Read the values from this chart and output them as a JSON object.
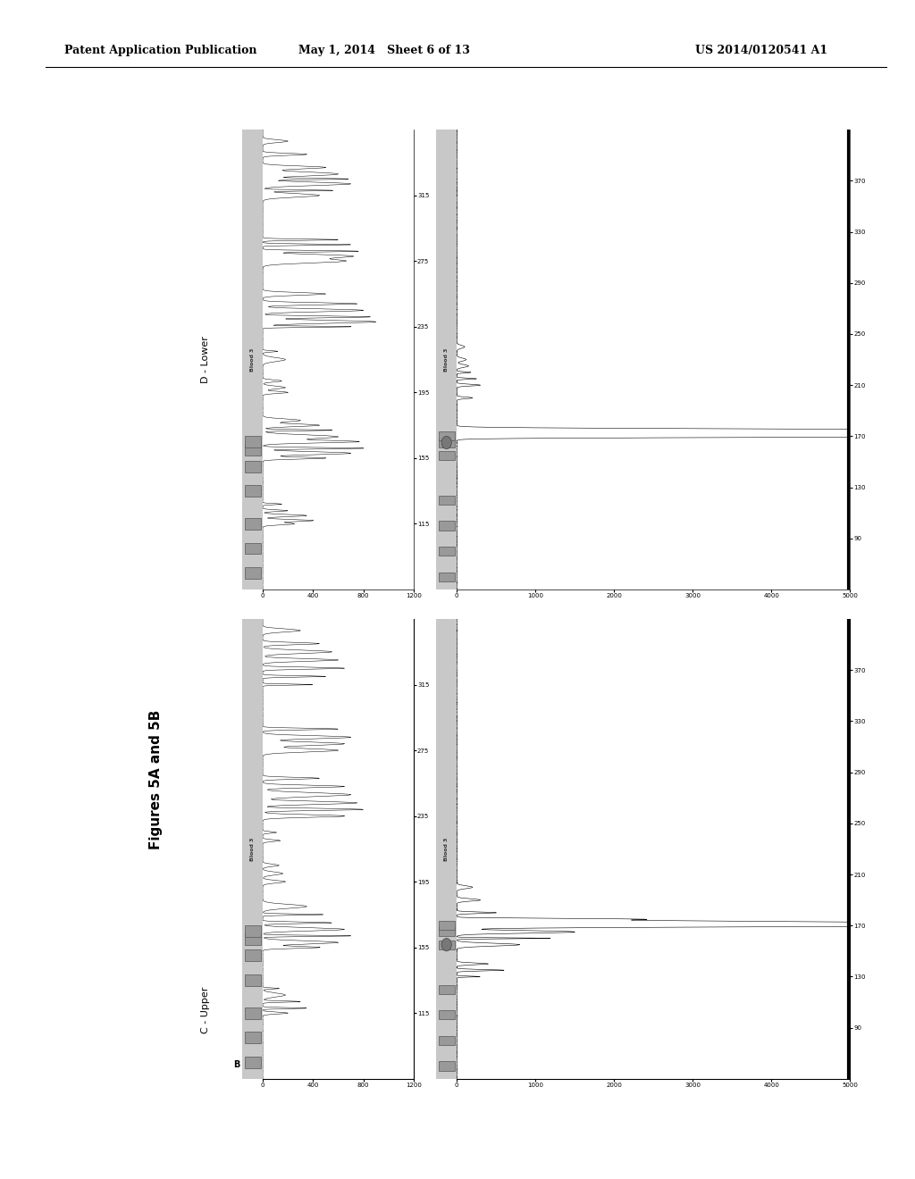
{
  "page_header_left": "Patent Application Publication",
  "page_header_mid": "May 1, 2014   Sheet 6 of 13",
  "page_header_right": "US 2014/0120541 A1",
  "figure_label": "Figures 5A and 5B",
  "label_B": "B",
  "label_C_upper": "C - Upper",
  "label_D_lower": "D - Lower",
  "bg_color": "#ffffff",
  "panel_bg": "#c8c8c8",
  "ladder_sq_color": "#888888",
  "trace_color": "#000000",
  "header_line_color": "#000000"
}
